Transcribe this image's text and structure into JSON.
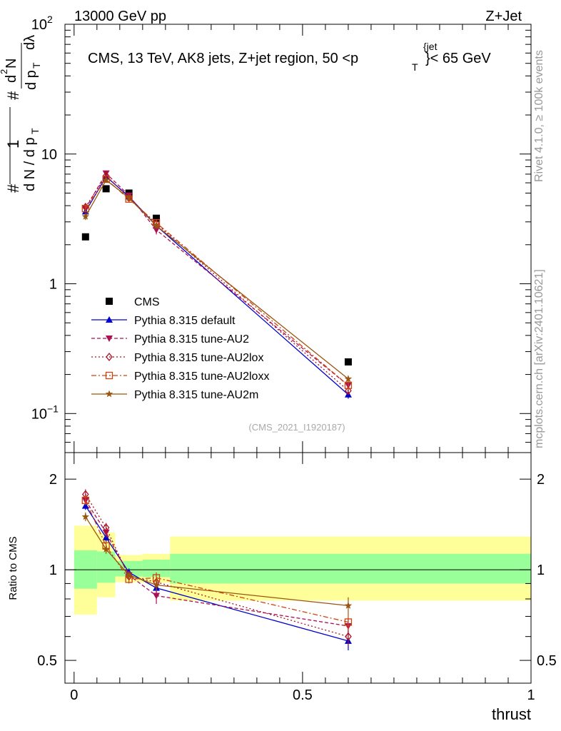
{
  "header": {
    "left": "13000 GeV pp",
    "right": "Z+Jet"
  },
  "side_labels": {
    "rivet": "Rivet 4.1.0, ≥ 100k events",
    "mcplots": "mcplots.cern.ch [arXiv:2401.10621]"
  },
  "chart_data": [
    {
      "type": "line",
      "panel": "main",
      "title": "CMS, 13 TeV, AK8 jets, Z+jet region, 50 <p_T^{jet}< 65 GeV",
      "watermark": "(CMS_2021_I1920187)",
      "yscale": "log",
      "ylim": [
        0.05,
        100
      ],
      "xlim": [
        -0.02,
        1.0
      ],
      "yticks": [
        {
          "v": 0.1,
          "label": "10",
          "sup": "−1"
        },
        {
          "v": 1,
          "label": "1",
          "sup": ""
        },
        {
          "v": 10,
          "label": "10",
          "sup": ""
        },
        {
          "v": 100,
          "label": "10",
          "sup": "2"
        }
      ],
      "legend_position": "center-left",
      "series": [
        {
          "name": "CMS",
          "color": "#000000",
          "marker": "square",
          "dash": "none",
          "x": [
            0.025,
            0.07,
            0.12,
            0.18,
            0.6
          ],
          "y": [
            2.3,
            5.4,
            5.0,
            3.2,
            0.25
          ],
          "err": [
            0,
            0,
            0,
            0,
            0
          ]
        },
        {
          "name": "Pythia 8.315 default",
          "color": "#0000cc",
          "marker": "triangle-up",
          "dash": "none",
          "x": [
            0.025,
            0.07,
            0.12,
            0.18,
            0.6
          ],
          "y": [
            3.6,
            6.7,
            4.7,
            2.8,
            0.14
          ],
          "err": [
            0.2,
            0.3,
            0.2,
            0.15,
            0.01
          ]
        },
        {
          "name": "Pythia 8.315 tune-AU2",
          "color": "#aa1155",
          "marker": "triangle-down",
          "dash": "5,3",
          "x": [
            0.025,
            0.07,
            0.12,
            0.18,
            0.6
          ],
          "y": [
            3.8,
            7.1,
            4.8,
            2.6,
            0.165
          ],
          "err": [
            0.2,
            0.3,
            0.2,
            0.2,
            0.01
          ]
        },
        {
          "name": "Pythia 8.315 tune-AU2lox",
          "color": "#aa1122",
          "marker": "diamond",
          "dash": "2,3",
          "x": [
            0.025,
            0.07,
            0.12,
            0.18,
            0.6
          ],
          "y": [
            3.9,
            6.8,
            4.6,
            2.9,
            0.15
          ],
          "err": [
            0.2,
            0.3,
            0.2,
            0.15,
            0.01
          ]
        },
        {
          "name": "Pythia 8.315 tune-AU2loxx",
          "color": "#cc4411",
          "marker": "square-open",
          "dash": "7,3,2,3",
          "x": [
            0.025,
            0.07,
            0.12,
            0.18,
            0.6
          ],
          "y": [
            3.8,
            6.4,
            4.5,
            2.95,
            0.165
          ],
          "err": [
            0.2,
            0.3,
            0.2,
            0.15,
            0.01
          ]
        },
        {
          "name": "Pythia 8.315 tune-AU2m",
          "color": "#995511",
          "marker": "star",
          "dash": "none",
          "x": [
            0.025,
            0.07,
            0.12,
            0.18,
            0.6
          ],
          "y": [
            3.3,
            6.3,
            4.6,
            2.8,
            0.185
          ],
          "err": [
            0.2,
            0.3,
            0.2,
            0.15,
            0.01
          ]
        }
      ]
    },
    {
      "type": "line",
      "panel": "ratio",
      "ylabel": "Ratio to CMS",
      "xlabel": "thrust",
      "yscale": "log",
      "ylim": [
        0.42,
        2.45
      ],
      "xlim": [
        -0.02,
        1.0
      ],
      "yticks": [
        {
          "v": 0.5,
          "label": "0.5"
        },
        {
          "v": 1,
          "label": "1"
        },
        {
          "v": 2,
          "label": "2"
        }
      ],
      "xticks": [
        {
          "v": 0,
          "label": "0"
        },
        {
          "v": 0.5,
          "label": "0.5"
        },
        {
          "v": 1,
          "label": "1"
        }
      ],
      "bands": [
        {
          "x0": 0.0,
          "x1": 0.05,
          "inner": [
            0.865,
            1.16
          ],
          "outer": [
            0.71,
            1.4
          ]
        },
        {
          "x0": 0.05,
          "x1": 0.09,
          "inner": [
            0.905,
            1.15
          ],
          "outer": [
            0.81,
            1.33
          ]
        },
        {
          "x0": 0.09,
          "x1": 0.15,
          "inner": [
            0.95,
            1.07
          ],
          "outer": [
            0.91,
            1.12
          ]
        },
        {
          "x0": 0.15,
          "x1": 0.21,
          "inner": [
            0.945,
            1.08
          ],
          "outer": [
            0.905,
            1.13
          ]
        },
        {
          "x0": 0.21,
          "x1": 1.0,
          "inner": [
            0.9,
            1.13
          ],
          "outer": [
            0.79,
            1.29
          ]
        }
      ],
      "series": [
        {
          "name": "Pythia 8.315 default",
          "x": [
            0.025,
            0.07,
            0.12,
            0.18,
            0.6
          ],
          "y": [
            1.63,
            1.28,
            0.98,
            0.87,
            0.58
          ],
          "err": [
            0.05,
            0.04,
            0.03,
            0.03,
            0.04
          ]
        },
        {
          "name": "Pythia 8.315 tune-AU2",
          "x": [
            0.025,
            0.07,
            0.12,
            0.18,
            0.6
          ],
          "y": [
            1.7,
            1.33,
            0.96,
            0.82,
            0.65
          ],
          "err": [
            0.06,
            0.05,
            0.03,
            0.05,
            0.04
          ]
        },
        {
          "name": "Pythia 8.315 tune-AU2lox",
          "x": [
            0.025,
            0.07,
            0.12,
            0.18,
            0.6
          ],
          "y": [
            1.78,
            1.38,
            0.95,
            0.91,
            0.6
          ],
          "err": [
            0.07,
            0.05,
            0.03,
            0.04,
            0.04
          ]
        },
        {
          "name": "Pythia 8.315 tune-AU2loxx",
          "x": [
            0.025,
            0.07,
            0.12,
            0.18,
            0.6
          ],
          "y": [
            1.7,
            1.2,
            0.93,
            0.94,
            0.67
          ],
          "err": [
            0.06,
            0.04,
            0.03,
            0.04,
            0.04
          ]
        },
        {
          "name": "Pythia 8.315 tune-AU2m",
          "x": [
            0.025,
            0.07,
            0.12,
            0.18,
            0.6
          ],
          "y": [
            1.5,
            1.17,
            0.96,
            0.89,
            0.76
          ],
          "err": [
            0.05,
            0.04,
            0.03,
            0.04,
            0.05
          ]
        }
      ]
    }
  ]
}
